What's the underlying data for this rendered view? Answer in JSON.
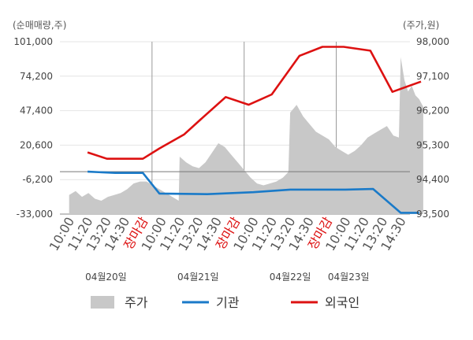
{
  "chart_data": {
    "type": "line",
    "left_axis": {
      "label": "(순매매량,주)",
      "ticks": [
        101000,
        74200,
        47400,
        20600,
        -6200,
        -33000
      ],
      "tick_labels": [
        "101,000",
        "74,200",
        "47,400",
        "20,600",
        "-6,200",
        "-33,000"
      ],
      "range": [
        -33000,
        101000
      ]
    },
    "right_axis": {
      "label": "(주가,원)",
      "ticks": [
        98000,
        97100,
        96200,
        95300,
        94400,
        93500
      ],
      "tick_labels": [
        "98,000",
        "97,100",
        "96,200",
        "95,300",
        "94,400",
        "93,500"
      ],
      "range": [
        93500,
        98000
      ]
    },
    "x_ticks": [
      "10:00",
      "11:20",
      "13:20",
      "14:30",
      "장마감",
      "10:00",
      "11:20",
      "13:20",
      "14:30",
      "장마감",
      "10:00",
      "11:20",
      "13:20",
      "14:30",
      "장마감",
      "10:00",
      "11:20",
      "13:20",
      "14:30"
    ],
    "x_tick_highlight": [
      false,
      false,
      false,
      false,
      true,
      false,
      false,
      false,
      false,
      true,
      false,
      false,
      false,
      false,
      true,
      false,
      false,
      false,
      false
    ],
    "dates": [
      "04월20일",
      "04월21일",
      "04월22일",
      "04월23일"
    ],
    "price_area": {
      "name": "주가",
      "color": "#c8c8c8",
      "axis": "right",
      "values": [
        [
          0,
          94000
        ],
        [
          1.4,
          94100
        ],
        [
          2.8,
          93950
        ],
        [
          4.2,
          94050
        ],
        [
          5.6,
          93900
        ],
        [
          7,
          93850
        ],
        [
          8.4,
          93950
        ],
        [
          9.8,
          94000
        ],
        [
          11.2,
          94050
        ],
        [
          12.6,
          94150
        ],
        [
          14,
          94300
        ],
        [
          15.4,
          94350
        ],
        [
          16.8,
          94350
        ],
        [
          18.2,
          94250
        ],
        [
          19.6,
          94150
        ],
        [
          21,
          94050
        ],
        [
          22.4,
          93950
        ],
        [
          23.8,
          93850
        ],
        [
          24,
          95000
        ],
        [
          25.4,
          94850
        ],
        [
          26.8,
          94750
        ],
        [
          28.2,
          94700
        ],
        [
          29.6,
          94850
        ],
        [
          31,
          95100
        ],
        [
          32.4,
          95350
        ],
        [
          33.8,
          95250
        ],
        [
          35.2,
          95050
        ],
        [
          36.6,
          94850
        ],
        [
          38,
          94650
        ],
        [
          39.4,
          94450
        ],
        [
          40.8,
          94300
        ],
        [
          42.2,
          94250
        ],
        [
          43.6,
          94300
        ],
        [
          45,
          94350
        ],
        [
          46.4,
          94450
        ],
        [
          47.6,
          94600
        ],
        [
          48,
          96150
        ],
        [
          49.4,
          96350
        ],
        [
          50.8,
          96050
        ],
        [
          52.2,
          95850
        ],
        [
          53.6,
          95650
        ],
        [
          55,
          95550
        ],
        [
          56.4,
          95450
        ],
        [
          57.8,
          95250
        ],
        [
          59.2,
          95150
        ],
        [
          60.6,
          95050
        ],
        [
          62,
          95150
        ],
        [
          63.4,
          95300
        ],
        [
          64.8,
          95500
        ],
        [
          66.2,
          95600
        ],
        [
          67.6,
          95700
        ],
        [
          69,
          95800
        ],
        [
          70.4,
          95550
        ],
        [
          71.6,
          95500
        ],
        [
          72,
          97600
        ],
        [
          72.8,
          97000
        ],
        [
          73.6,
          96700
        ],
        [
          74.4,
          96850
        ],
        [
          75.2,
          96600
        ],
        [
          76,
          96500
        ],
        [
          76.9,
          96300
        ]
      ]
    },
    "series": [
      {
        "name": "기관",
        "color": "#1a7ac8",
        "axis": "left",
        "points": [
          [
            4,
            0
          ],
          [
            10,
            -1000
          ],
          [
            16,
            -1000
          ],
          [
            19.6,
            -17000
          ],
          [
            30,
            -17500
          ],
          [
            40,
            -16000
          ],
          [
            48,
            -14000
          ],
          [
            60,
            -14000
          ],
          [
            66,
            -13500
          ],
          [
            72,
            -32000
          ],
          [
            76,
            -32000
          ]
        ]
      },
      {
        "name": "외국인",
        "color": "#dd1111",
        "axis": "left",
        "points": [
          [
            4,
            15000
          ],
          [
            8.2,
            10000
          ],
          [
            16,
            10000
          ],
          [
            19.6,
            18000
          ],
          [
            25,
            29000
          ],
          [
            29,
            42000
          ],
          [
            34,
            58000
          ],
          [
            39,
            52000
          ],
          [
            44,
            60000
          ],
          [
            50,
            90000
          ],
          [
            55,
            97000
          ],
          [
            59.6,
            97000
          ],
          [
            65.4,
            94000
          ],
          [
            70.2,
            62000
          ],
          [
            76.4,
            70000
          ]
        ]
      }
    ],
    "grid": true,
    "legend": {
      "position": "bottom",
      "items": [
        "주가",
        "기관",
        "외국인"
      ]
    }
  }
}
